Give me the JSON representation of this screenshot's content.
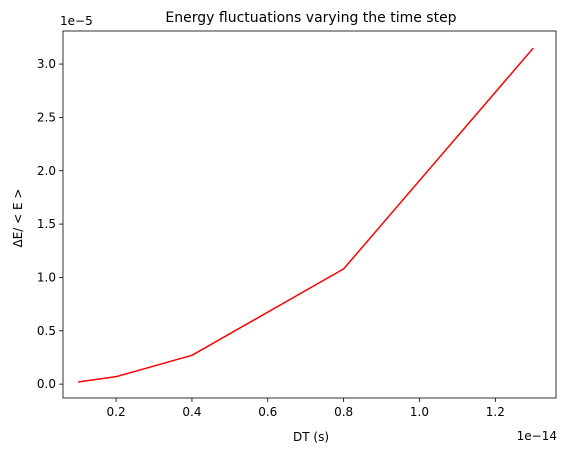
{
  "chart_data": {
    "type": "line",
    "title": "Energy fluctuations varying the time step",
    "xlabel": "DT (s)",
    "ylabel": "ΔE/ < E >",
    "x_offset_label": "1e−14",
    "y_offset_label": "1e−5",
    "xlim": [
      6e-16,
      1.36e-14
    ],
    "ylim": [
      -1.3e-06,
      3.31e-05
    ],
    "x_ticks": [
      2e-15,
      4e-15,
      6e-15,
      8e-15,
      1e-14,
      1.2e-14
    ],
    "x_tick_labels": [
      "0.2",
      "0.4",
      "0.6",
      "0.8",
      "1.0",
      "1.2"
    ],
    "y_ticks": [
      0.0,
      5e-06,
      1e-05,
      1.5e-05,
      2e-05,
      2.5e-05,
      3e-05
    ],
    "y_tick_labels": [
      "0.0",
      "0.5",
      "1.0",
      "1.5",
      "2.0",
      "2.5",
      "3.0"
    ],
    "grid": false,
    "series": [
      {
        "color": "#ff0000",
        "x": [
          1e-15,
          2e-15,
          4e-15,
          8e-15,
          1.3e-14
        ],
        "y": [
          2e-07,
          7e-07,
          2.7e-06,
          1.08e-05,
          3.15e-05
        ]
      }
    ]
  }
}
